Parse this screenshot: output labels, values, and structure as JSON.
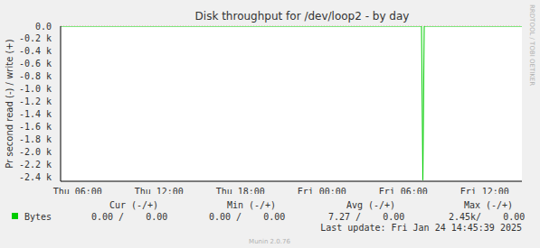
{
  "chart_data": {
    "type": "line",
    "title": "Disk throughput for /dev/loop2 - by day",
    "y_label": "Pr second read (-) / write (+)",
    "x": [
      4.75,
      31.35,
      31.45,
      31.55,
      38.75
    ],
    "series": [
      {
        "name": "Bytes",
        "color": "#00cc00",
        "values": [
          0,
          0,
          -2450,
          0,
          0
        ]
      }
    ],
    "xlim": [
      4.75,
      38.75
    ],
    "xticks": [
      {
        "value": 6,
        "label": "Thu 06:00"
      },
      {
        "value": 12,
        "label": "Thu 12:00"
      },
      {
        "value": 18,
        "label": "Thu 18:00"
      },
      {
        "value": 24,
        "label": "Fri 00:00"
      },
      {
        "value": 30,
        "label": "Fri 06:00"
      },
      {
        "value": 36,
        "label": "Fri 12:00"
      }
    ],
    "ylim": [
      -2470,
      0
    ],
    "yticks": [
      {
        "value": 0,
        "label": "0.0"
      },
      {
        "value": -200,
        "label": "-0.2 k"
      },
      {
        "value": -400,
        "label": "-0.4 k"
      },
      {
        "value": -600,
        "label": "-0.6 k"
      },
      {
        "value": -800,
        "label": "-0.8 k"
      },
      {
        "value": -1000,
        "label": "-1.0 k"
      },
      {
        "value": -1200,
        "label": "-1.2 k"
      },
      {
        "value": -1400,
        "label": "-1.4 k"
      },
      {
        "value": -1600,
        "label": "-1.6 k"
      },
      {
        "value": -1800,
        "label": "-1.8 k"
      },
      {
        "value": -2000,
        "label": "-2.0 k"
      },
      {
        "value": -2200,
        "label": "-2.2 k"
      },
      {
        "value": -2400,
        "label": "-2.4 k"
      }
    ],
    "grid": true,
    "stats": {
      "headers": [
        "Cur (-/+)",
        "Min (-/+)",
        "Avg (-/+)",
        "Max (-/+)"
      ],
      "cells": [
        "0.00 /    0.00",
        "0.00 /    0.00",
        "7.27 /    0.00",
        "2.45k/    0.00"
      ]
    },
    "last_update": "Last update: Fri Jan 24 14:45:39 2025",
    "side_text": "RRDTOOL / TOBI OETIKER",
    "footer": "Munin 2.0.76"
  }
}
